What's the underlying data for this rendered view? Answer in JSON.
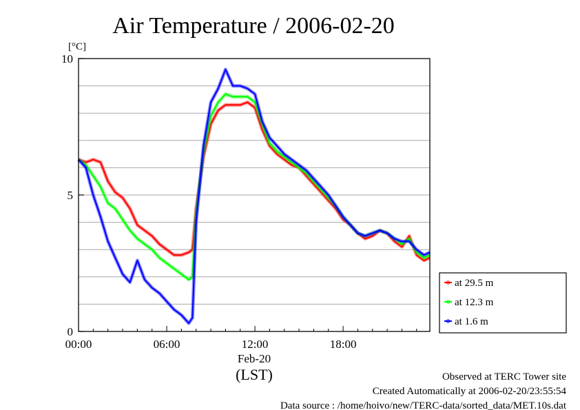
{
  "chart_data": {
    "type": "line",
    "title": "Air Temperature / 2006-02-20",
    "ylabel": "[°C]",
    "xlabel": "(LST)",
    "date_label": "Feb-20",
    "ylim": [
      0,
      10
    ],
    "xlim": [
      0,
      23.9
    ],
    "x_unit": "hours (LST)",
    "yticks": [
      0,
      5,
      10
    ],
    "xtick_labels": [
      "00:00",
      "06:00",
      "12:00",
      "18:00"
    ],
    "xtick_values": [
      0,
      6,
      12,
      18
    ],
    "grid": "horizontal",
    "legend_position": "bottom-right, outside plot",
    "series": [
      {
        "name": "at 29.5 m",
        "color": "#ff0000",
        "x": [
          0.0,
          0.5,
          1.0,
          1.5,
          2.0,
          2.5,
          3.0,
          3.5,
          4.0,
          4.5,
          5.0,
          5.5,
          6.0,
          6.5,
          7.0,
          7.5,
          7.75,
          8.0,
          8.5,
          9.0,
          9.5,
          10.0,
          10.5,
          11.0,
          11.5,
          12.0,
          12.5,
          13.0,
          13.5,
          14.0,
          14.5,
          15.0,
          15.5,
          16.0,
          16.5,
          17.0,
          17.5,
          18.0,
          18.5,
          19.0,
          19.5,
          20.0,
          20.5,
          21.0,
          21.5,
          22.0,
          22.5,
          23.0,
          23.5,
          23.9
        ],
        "y": [
          6.3,
          6.2,
          6.3,
          6.2,
          5.5,
          5.1,
          4.9,
          4.5,
          3.9,
          3.7,
          3.5,
          3.2,
          3.0,
          2.8,
          2.8,
          2.9,
          3.0,
          4.5,
          6.4,
          7.6,
          8.1,
          8.3,
          8.3,
          8.3,
          8.4,
          8.2,
          7.4,
          6.8,
          6.5,
          6.3,
          6.1,
          6.0,
          5.7,
          5.4,
          5.1,
          4.8,
          4.5,
          4.1,
          3.9,
          3.6,
          3.4,
          3.5,
          3.7,
          3.6,
          3.3,
          3.1,
          3.5,
          2.8,
          2.6,
          2.7
        ]
      },
      {
        "name": "at 12.3 m",
        "color": "#00ff00",
        "x": [
          0.0,
          0.5,
          1.0,
          1.5,
          2.0,
          2.5,
          3.0,
          3.5,
          4.0,
          4.5,
          5.0,
          5.5,
          6.0,
          6.5,
          7.0,
          7.5,
          7.75,
          8.0,
          8.5,
          9.0,
          9.5,
          10.0,
          10.5,
          11.0,
          11.5,
          12.0,
          12.5,
          13.0,
          13.5,
          14.0,
          14.5,
          15.0,
          15.5,
          16.0,
          16.5,
          17.0,
          17.5,
          18.0,
          18.5,
          19.0,
          19.5,
          20.0,
          20.5,
          21.0,
          21.5,
          22.0,
          22.5,
          23.0,
          23.5,
          23.9
        ],
        "y": [
          6.3,
          6.1,
          5.7,
          5.3,
          4.7,
          4.5,
          4.1,
          3.7,
          3.4,
          3.2,
          3.0,
          2.7,
          2.5,
          2.3,
          2.1,
          1.9,
          2.0,
          4.3,
          6.6,
          7.9,
          8.4,
          8.7,
          8.6,
          8.6,
          8.6,
          8.4,
          7.6,
          6.9,
          6.6,
          6.4,
          6.2,
          6.0,
          5.8,
          5.5,
          5.2,
          4.9,
          4.6,
          4.2,
          3.9,
          3.6,
          3.5,
          3.6,
          3.7,
          3.6,
          3.4,
          3.2,
          3.4,
          2.9,
          2.7,
          2.8
        ]
      },
      {
        "name": "at 1.6 m",
        "color": "#0000ff",
        "x": [
          0.0,
          0.5,
          1.0,
          1.5,
          2.0,
          2.5,
          3.0,
          3.5,
          4.0,
          4.5,
          5.0,
          5.5,
          6.0,
          6.5,
          7.0,
          7.5,
          7.75,
          8.0,
          8.5,
          9.0,
          9.5,
          10.0,
          10.5,
          11.0,
          11.5,
          12.0,
          12.5,
          13.0,
          13.5,
          14.0,
          14.5,
          15.0,
          15.5,
          16.0,
          16.5,
          17.0,
          17.5,
          18.0,
          18.5,
          19.0,
          19.5,
          20.0,
          20.5,
          21.0,
          21.5,
          22.0,
          22.5,
          23.0,
          23.5,
          23.9
        ],
        "y": [
          6.3,
          6.0,
          5.0,
          4.2,
          3.3,
          2.7,
          2.1,
          1.8,
          2.6,
          1.9,
          1.6,
          1.4,
          1.1,
          0.8,
          0.6,
          0.3,
          0.5,
          4.0,
          6.8,
          8.4,
          8.9,
          9.6,
          9.0,
          9.0,
          8.9,
          8.7,
          7.7,
          7.1,
          6.8,
          6.5,
          6.3,
          6.1,
          5.9,
          5.6,
          5.3,
          5.0,
          4.6,
          4.2,
          3.9,
          3.6,
          3.5,
          3.6,
          3.7,
          3.6,
          3.4,
          3.3,
          3.3,
          3.0,
          2.8,
          2.9
        ]
      }
    ]
  },
  "footer": {
    "line1": "Observed at TERC Tower site",
    "line2": "Created Automatically at 2006-02-20/23:55:54",
    "line3": "Data source : /home/hoivo/new/TERC-data/sorted_data/MET.10s.dat"
  }
}
